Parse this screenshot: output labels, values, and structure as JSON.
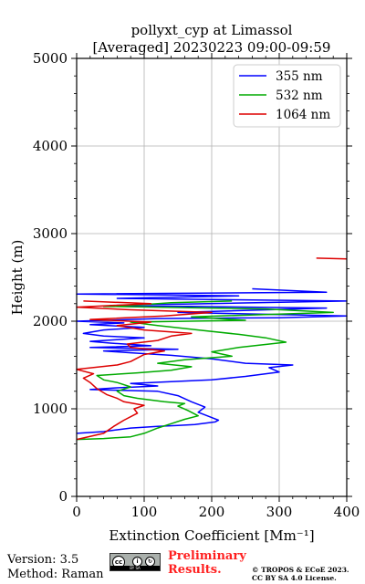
{
  "chart_data": {
    "type": "line",
    "title": "pollyxt_cyp at Limassol",
    "subtitle": "[Averaged] 20230223 09:00-09:59",
    "xlabel": "Extinction Coefficient [Mm⁻¹]",
    "ylabel": "Height (m)",
    "xlim": [
      0,
      400
    ],
    "ylim": [
      0,
      5000
    ],
    "x_ticks": [
      "0",
      "100",
      "200",
      "300",
      "400"
    ],
    "y_ticks": [
      "0",
      "1000",
      "2000",
      "3000",
      "4000",
      "5000"
    ],
    "grid": true,
    "legend_position": "top-right",
    "series": [
      {
        "name": "355 nm",
        "color": "#0000ff",
        "points": [
          [
            0,
            720
          ],
          [
            40,
            740
          ],
          [
            60,
            760
          ],
          [
            80,
            780
          ],
          [
            120,
            800
          ],
          [
            150,
            810
          ],
          [
            175,
            820
          ],
          [
            205,
            850
          ],
          [
            210,
            870
          ],
          [
            200,
            900
          ],
          [
            180,
            960
          ],
          [
            190,
            1020
          ],
          [
            170,
            1080
          ],
          [
            150,
            1150
          ],
          [
            120,
            1200
          ],
          [
            20,
            1220
          ],
          [
            60,
            1240
          ],
          [
            120,
            1260
          ],
          [
            80,
            1290
          ],
          [
            200,
            1330
          ],
          [
            250,
            1370
          ],
          [
            300,
            1420
          ],
          [
            285,
            1470
          ],
          [
            320,
            1500
          ],
          [
            250,
            1520
          ],
          [
            200,
            1570
          ],
          [
            140,
            1610
          ],
          [
            80,
            1640
          ],
          [
            40,
            1660
          ],
          [
            150,
            1680
          ],
          [
            20,
            1700
          ],
          [
            110,
            1720
          ],
          [
            50,
            1750
          ],
          [
            20,
            1770
          ],
          [
            60,
            1790
          ],
          [
            100,
            1810
          ],
          [
            40,
            1830
          ],
          [
            10,
            1860
          ],
          [
            40,
            1900
          ],
          [
            100,
            1930
          ],
          [
            20,
            1960
          ],
          [
            70,
            1980
          ],
          [
            0,
            2000
          ],
          [
            120,
            2030
          ],
          [
            300,
            2040
          ],
          [
            400,
            2060
          ],
          [
            150,
            2100
          ],
          [
            370,
            2150
          ],
          [
            50,
            2180
          ],
          [
            400,
            2230
          ],
          [
            60,
            2260
          ],
          [
            240,
            2290
          ],
          [
            0,
            2310
          ],
          [
            370,
            2330
          ],
          [
            260,
            2370
          ]
        ]
      },
      {
        "name": "532 nm",
        "color": "#00aa00",
        "points": [
          [
            0,
            650
          ],
          [
            40,
            660
          ],
          [
            80,
            680
          ],
          [
            100,
            720
          ],
          [
            120,
            780
          ],
          [
            140,
            830
          ],
          [
            160,
            880
          ],
          [
            180,
            920
          ],
          [
            165,
            980
          ],
          [
            150,
            1030
          ],
          [
            160,
            1060
          ],
          [
            130,
            1080
          ],
          [
            90,
            1120
          ],
          [
            70,
            1150
          ],
          [
            60,
            1200
          ],
          [
            80,
            1250
          ],
          [
            60,
            1300
          ],
          [
            40,
            1330
          ],
          [
            30,
            1380
          ],
          [
            90,
            1410
          ],
          [
            140,
            1440
          ],
          [
            170,
            1480
          ],
          [
            120,
            1520
          ],
          [
            160,
            1560
          ],
          [
            230,
            1600
          ],
          [
            200,
            1650
          ],
          [
            240,
            1700
          ],
          [
            310,
            1760
          ],
          [
            280,
            1810
          ],
          [
            240,
            1850
          ],
          [
            180,
            1900
          ],
          [
            120,
            1950
          ],
          [
            80,
            1990
          ],
          [
            250,
            2010
          ],
          [
            170,
            2050
          ],
          [
            380,
            2100
          ],
          [
            280,
            2140
          ],
          [
            40,
            2170
          ],
          [
            100,
            2190
          ],
          [
            140,
            2210
          ],
          [
            230,
            2230
          ]
        ]
      },
      {
        "name": "1064 nm",
        "color": "#dd0000",
        "points": [
          [
            0,
            650
          ],
          [
            40,
            720
          ],
          [
            55,
            800
          ],
          [
            70,
            870
          ],
          [
            90,
            950
          ],
          [
            85,
            1000
          ],
          [
            100,
            1040
          ],
          [
            70,
            1080
          ],
          [
            60,
            1120
          ],
          [
            45,
            1160
          ],
          [
            30,
            1230
          ],
          [
            20,
            1300
          ],
          [
            10,
            1350
          ],
          [
            25,
            1400
          ],
          [
            0,
            1450
          ],
          [
            60,
            1500
          ],
          [
            80,
            1540
          ],
          [
            90,
            1580
          ],
          [
            100,
            1620
          ],
          [
            130,
            1660
          ],
          [
            80,
            1700
          ],
          [
            75,
            1740
          ],
          [
            120,
            1780
          ],
          [
            140,
            1830
          ],
          [
            170,
            1860
          ],
          [
            100,
            1900
          ],
          [
            60,
            1950
          ],
          [
            110,
            1990
          ],
          [
            20,
            2020
          ],
          [
            130,
            2060
          ],
          [
            200,
            2100
          ],
          [
            80,
            2130
          ],
          [
            0,
            2160
          ],
          [
            110,
            2200
          ],
          [
            10,
            2230
          ]
        ]
      },
      {
        "name": "",
        "color": "#dd0000",
        "points": [
          [
            355,
            2720
          ],
          [
            400,
            2710
          ]
        ]
      }
    ]
  },
  "footer": {
    "version": "Version: 3.5",
    "method": "Method: Raman",
    "preliminary_line1": "Preliminary",
    "preliminary_line2": "Results.",
    "license_line1": "© TROPOS & ECoE 2023.",
    "license_line2": "CC BY SA 4.0 License."
  }
}
